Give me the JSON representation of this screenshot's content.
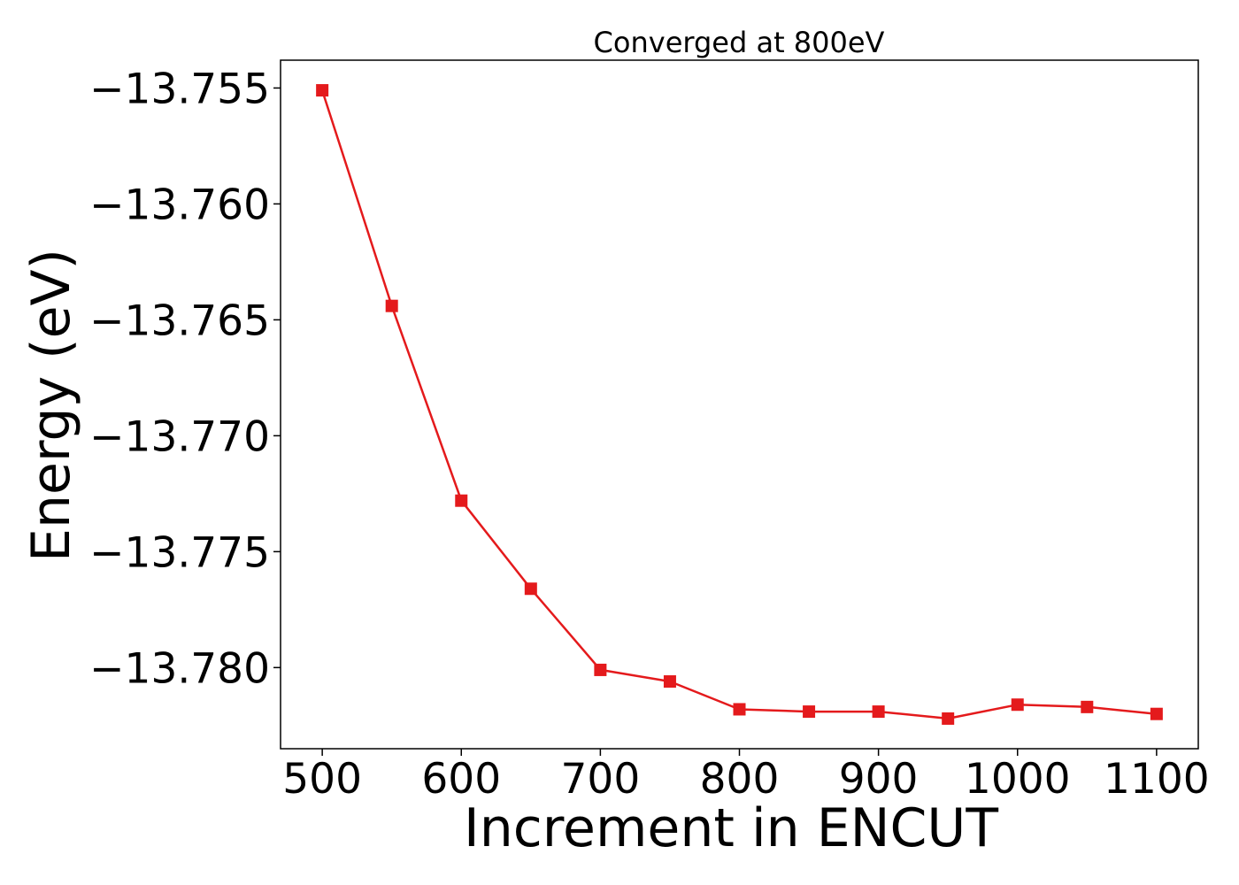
{
  "chart_data": {
    "type": "line",
    "title": "Converged at 800eV",
    "xlabel": "Increment in ENCUT",
    "ylabel": "Energy (eV)",
    "xlim": [
      470,
      1130
    ],
    "ylim": [
      -13.7835,
      -13.7538
    ],
    "x_ticks": [
      500,
      600,
      700,
      800,
      900,
      1000,
      1100
    ],
    "x_tick_labels": [
      "500",
      "600",
      "700",
      "800",
      "900",
      "1000",
      "1100"
    ],
    "y_ticks": [
      -13.755,
      -13.76,
      -13.765,
      -13.77,
      -13.775,
      -13.78
    ],
    "y_tick_labels": [
      "−13.755",
      "−13.760",
      "−13.765",
      "−13.770",
      "−13.775",
      "−13.780"
    ],
    "grid": false,
    "series": [
      {
        "color": "#e41a1c",
        "marker": "square",
        "x": [
          500,
          550,
          600,
          650,
          700,
          750,
          800,
          850,
          900,
          950,
          1000,
          1050,
          1100
        ],
        "y": [
          -13.7551,
          -13.7644,
          -13.7728,
          -13.7766,
          -13.7801,
          -13.7806,
          -13.7818,
          -13.7819,
          -13.7819,
          -13.7822,
          -13.7816,
          -13.7817,
          -13.782
        ]
      }
    ]
  }
}
